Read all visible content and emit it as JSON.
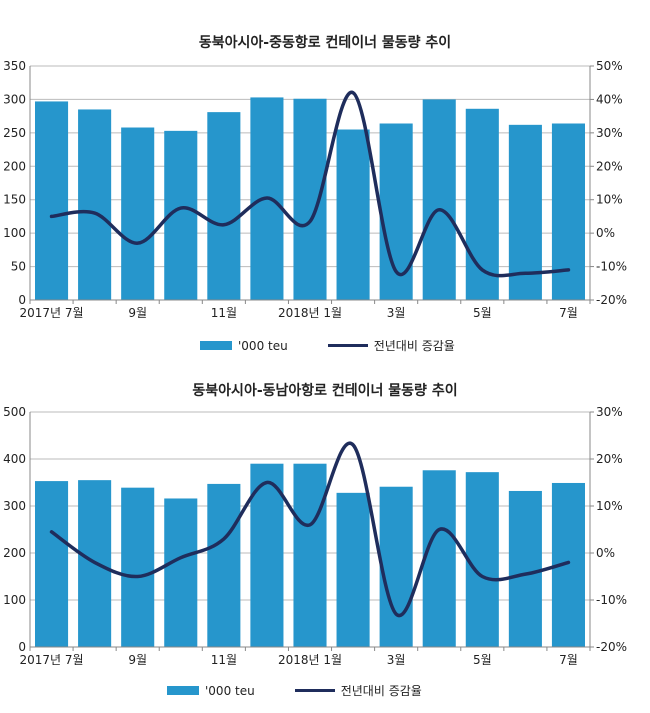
{
  "chart_data": [
    {
      "type": "bar+line",
      "title": "동북아시아-중동항로 컨테이너 물동량 추이",
      "categories": [
        "2017년 7월",
        "8월",
        "9월",
        "10월",
        "11월",
        "12월",
        "2018년 1월",
        "2월",
        "3월",
        "4월",
        "5월",
        "6월",
        "7월"
      ],
      "x_tick_labels": [
        "2017년 7월",
        "9월",
        "11월",
        "2018년 1월",
        "3월",
        "5월",
        "7월"
      ],
      "series": [
        {
          "name": "'000 teu",
          "type": "bar",
          "axis": "left",
          "values": [
            297,
            285,
            258,
            253,
            281,
            303,
            301,
            255,
            264,
            300,
            286,
            262,
            264
          ]
        },
        {
          "name": "전년대비 증감율",
          "type": "line",
          "axis": "right",
          "values": [
            5,
            6,
            -3,
            7.5,
            2.5,
            10.5,
            3.5,
            42,
            -11.5,
            7,
            -11,
            -12,
            -11
          ]
        }
      ],
      "ylim": [
        0,
        350
      ],
      "yticks": [
        "0",
        "50",
        "100",
        "150",
        "200",
        "250",
        "300",
        "350"
      ],
      "y2lim": [
        -20,
        50
      ],
      "y2ticks": [
        "-20%",
        "-10%",
        "0%",
        "10%",
        "20%",
        "30%",
        "40%",
        "50%"
      ],
      "legend": "bottom",
      "grid": true
    },
    {
      "type": "bar+line",
      "title": "동북아시아-동남아항로 컨테이너 물동량 추이",
      "categories": [
        "2017년 7월",
        "8월",
        "9월",
        "10월",
        "11월",
        "12월",
        "2018년 1월",
        "2월",
        "3월",
        "4월",
        "5월",
        "6월",
        "7월"
      ],
      "x_tick_labels": [
        "2017년 7월",
        "9월",
        "11월",
        "2018년 1월",
        "3월",
        "5월",
        "7월"
      ],
      "series": [
        {
          "name": "'000 teu",
          "type": "bar",
          "axis": "left",
          "values": [
            353,
            355,
            339,
            316,
            347,
            390,
            390,
            328,
            341,
            376,
            372,
            332,
            349
          ]
        },
        {
          "name": "전년대비 증감율",
          "type": "line",
          "axis": "right",
          "values": [
            4.5,
            -2,
            -5,
            -1,
            3,
            15,
            6,
            23,
            -13,
            5,
            -5,
            -4.5,
            -2
          ]
        }
      ],
      "ylim": [
        0,
        500
      ],
      "yticks": [
        "0",
        "100",
        "200",
        "300",
        "400",
        "500"
      ],
      "y2lim": [
        -20,
        30
      ],
      "y2ticks": [
        "-20%",
        "-10%",
        "0%",
        "10%",
        "20%",
        "30%"
      ],
      "legend": "bottom",
      "grid": true
    }
  ],
  "colors": {
    "bar": "#2696cc",
    "line": "#1f2d5c",
    "grid": "#bbbbbb"
  }
}
